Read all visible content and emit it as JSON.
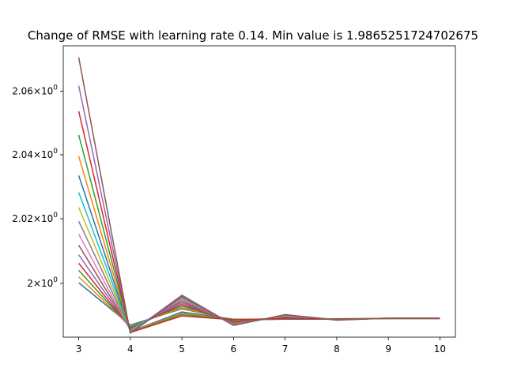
{
  "chart_data": {
    "type": "line",
    "title": "Change of RMSE with learning rate 0.14. Min value is 1.9865251724702675",
    "xlabel": "",
    "ylabel": "",
    "xlim": [
      2.7,
      10.3
    ],
    "ylim": [
      1.9835,
      2.0745
    ],
    "y_scale": "log",
    "grid": false,
    "x_ticks": [
      {
        "value": 3,
        "label": "3"
      },
      {
        "value": 4,
        "label": "4"
      },
      {
        "value": 5,
        "label": "5"
      },
      {
        "value": 6,
        "label": "6"
      },
      {
        "value": 7,
        "label": "7"
      },
      {
        "value": 8,
        "label": "8"
      },
      {
        "value": 9,
        "label": "9"
      },
      {
        "value": 10,
        "label": "10"
      }
    ],
    "y_ticks": [
      {
        "value": 2.0,
        "base": "2",
        "exp": "0"
      },
      {
        "value": 2.02,
        "base": "2.02",
        "exp": "0"
      },
      {
        "value": 2.04,
        "base": "2.04",
        "exp": "0"
      },
      {
        "value": 2.06,
        "base": "2.06",
        "exp": "0"
      }
    ],
    "x": [
      3,
      4,
      5,
      6,
      7,
      8,
      9,
      10
    ],
    "series": [
      {
        "color": "#1f77b4",
        "values": [
          2.0002,
          1.9872,
          1.9922,
          1.9887,
          1.989,
          1.989,
          1.9892,
          1.9892
        ]
      },
      {
        "color": "#ff7f0e",
        "values": [
          2.002,
          1.9868,
          1.9925,
          1.9885,
          1.9892,
          1.989,
          1.9893,
          1.9893
        ]
      },
      {
        "color": "#2ca02c",
        "values": [
          2.004,
          1.9865,
          1.993,
          1.9883,
          1.9895,
          1.9889,
          1.9893,
          1.9893
        ]
      },
      {
        "color": "#d62728",
        "values": [
          2.0062,
          1.9862,
          1.9935,
          1.988,
          1.9897,
          1.9889,
          1.9893,
          1.9893
        ]
      },
      {
        "color": "#9467bd",
        "values": [
          2.0088,
          1.986,
          1.994,
          1.9878,
          1.9898,
          1.9888,
          1.9893,
          1.9893
        ]
      },
      {
        "color": "#8c564b",
        "values": [
          2.0118,
          1.9858,
          1.9945,
          1.9876,
          1.9899,
          1.9888,
          1.9893,
          1.9893
        ]
      },
      {
        "color": "#e377c2",
        "values": [
          2.0152,
          1.9856,
          1.995,
          1.9875,
          1.99,
          1.9888,
          1.9893,
          1.9893
        ]
      },
      {
        "color": "#7f7f7f",
        "values": [
          2.0192,
          1.9855,
          1.9953,
          1.9874,
          1.9901,
          1.9888,
          1.9893,
          1.9893
        ]
      },
      {
        "color": "#bcbd22",
        "values": [
          2.0235,
          1.9854,
          1.9956,
          1.9873,
          1.9902,
          1.9888,
          1.9893,
          1.9893
        ]
      },
      {
        "color": "#17becf",
        "values": [
          2.0282,
          1.9853,
          1.9958,
          1.9872,
          1.9903,
          1.9888,
          1.9893,
          1.9893
        ]
      },
      {
        "color": "#1f77b4",
        "values": [
          2.0335,
          1.9852,
          1.9912,
          1.989,
          1.989,
          1.9891,
          1.9892,
          1.9892
        ]
      },
      {
        "color": "#ff7f0e",
        "values": [
          2.0395,
          1.9851,
          1.9908,
          1.9889,
          1.9891,
          1.9891,
          1.9892,
          1.9892
        ]
      },
      {
        "color": "#2ca02c",
        "values": [
          2.0462,
          1.985,
          1.9904,
          1.9889,
          1.9891,
          1.9891,
          1.9892,
          1.9892
        ]
      },
      {
        "color": "#d62728",
        "values": [
          2.0537,
          1.9849,
          1.99,
          1.9888,
          1.9892,
          1.989,
          1.9892,
          1.9892
        ]
      },
      {
        "color": "#9467bd",
        "values": [
          2.0618,
          1.9848,
          1.9964,
          1.9872,
          1.9903,
          1.9888,
          1.9893,
          1.9893
        ]
      },
      {
        "color": "#8c564b",
        "values": [
          2.0708,
          1.9847,
          1.996,
          1.9871,
          1.9904,
          1.9887,
          1.9893,
          1.9893
        ]
      }
    ]
  }
}
